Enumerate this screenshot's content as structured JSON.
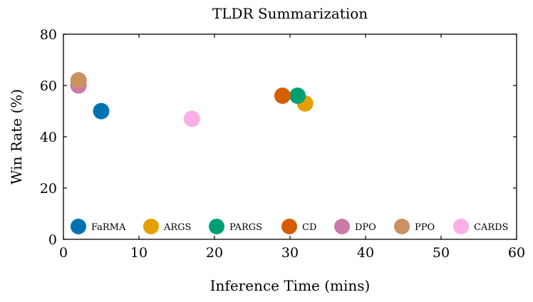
{
  "chart_data": {
    "type": "scatter",
    "title": "TLDR Summarization",
    "xlabel": "Inference Time (mins)",
    "ylabel": "Win Rate (%)",
    "xlim": [
      0,
      60
    ],
    "ylim": [
      0,
      80
    ],
    "xticks": [
      0,
      10,
      20,
      30,
      40,
      50,
      60
    ],
    "yticks": [
      0,
      20,
      40,
      60,
      80
    ],
    "grid": false,
    "legend_position": "bottom",
    "series": [
      {
        "name": "FaRMA",
        "color": "#0072B2",
        "x": [
          5
        ],
        "y": [
          50
        ]
      },
      {
        "name": "ARGS",
        "color": "#E69F00",
        "x": [
          32
        ],
        "y": [
          53
        ]
      },
      {
        "name": "PARGS",
        "color": "#009E73",
        "x": [
          31
        ],
        "y": [
          56
        ]
      },
      {
        "name": "CD",
        "color": "#D55E00",
        "x": [
          29
        ],
        "y": [
          56
        ]
      },
      {
        "name": "DPO",
        "color": "#CC79A7",
        "x": [
          2
        ],
        "y": [
          60
        ]
      },
      {
        "name": "PPO",
        "color": "#CA9161",
        "x": [
          2
        ],
        "y": [
          62
        ]
      },
      {
        "name": "CARDS",
        "color": "#FBAFE4",
        "x": [
          17
        ],
        "y": [
          47
        ]
      }
    ]
  }
}
